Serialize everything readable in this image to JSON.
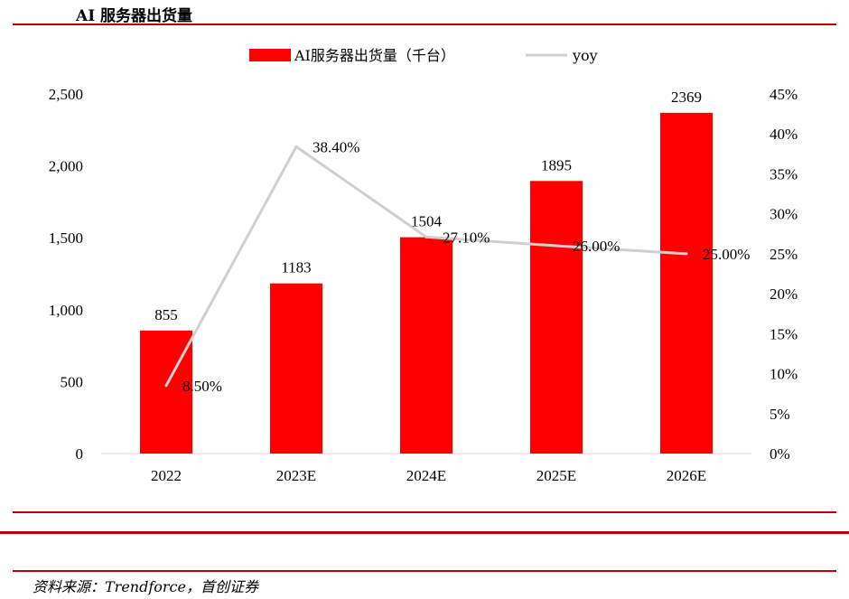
{
  "title": "AI 服务器出货量",
  "source": "资料来源：Trendforce，首创证券",
  "chart_data": {
    "type": "bar",
    "categories": [
      "2022",
      "2023E",
      "2024E",
      "2025E",
      "2026E"
    ],
    "series": [
      {
        "name": "AI服务器出货量（千台）",
        "type": "bar",
        "axis": "left",
        "values": [
          855,
          1183,
          1504,
          1895,
          2369
        ],
        "labels": [
          "855",
          "1183",
          "1504",
          "1895",
          "2369"
        ],
        "color": "#ff0000"
      },
      {
        "name": "yoy",
        "type": "line",
        "axis": "right",
        "values": [
          8.5,
          38.4,
          27.1,
          26.0,
          25.0
        ],
        "labels": [
          "8.50%",
          "38.40%",
          "27.10%",
          "26.00%",
          "25.00%"
        ],
        "color": "#d0d0d0"
      }
    ],
    "y_left": {
      "min": 0,
      "max": 2500,
      "ticks": [
        "0",
        "500",
        "1,000",
        "1,500",
        "2,000",
        "2,500"
      ],
      "tick_values": [
        0,
        500,
        1000,
        1500,
        2000,
        2500
      ]
    },
    "y_right": {
      "min": 0,
      "max": 45,
      "ticks": [
        "0%",
        "5%",
        "10%",
        "15%",
        "20%",
        "25%",
        "30%",
        "35%",
        "40%",
        "45%"
      ],
      "tick_values": [
        0,
        5,
        10,
        15,
        20,
        25,
        30,
        35,
        40,
        45
      ]
    },
    "grid": false,
    "legend_position": "top"
  },
  "colors": {
    "rule": "#c00000"
  }
}
